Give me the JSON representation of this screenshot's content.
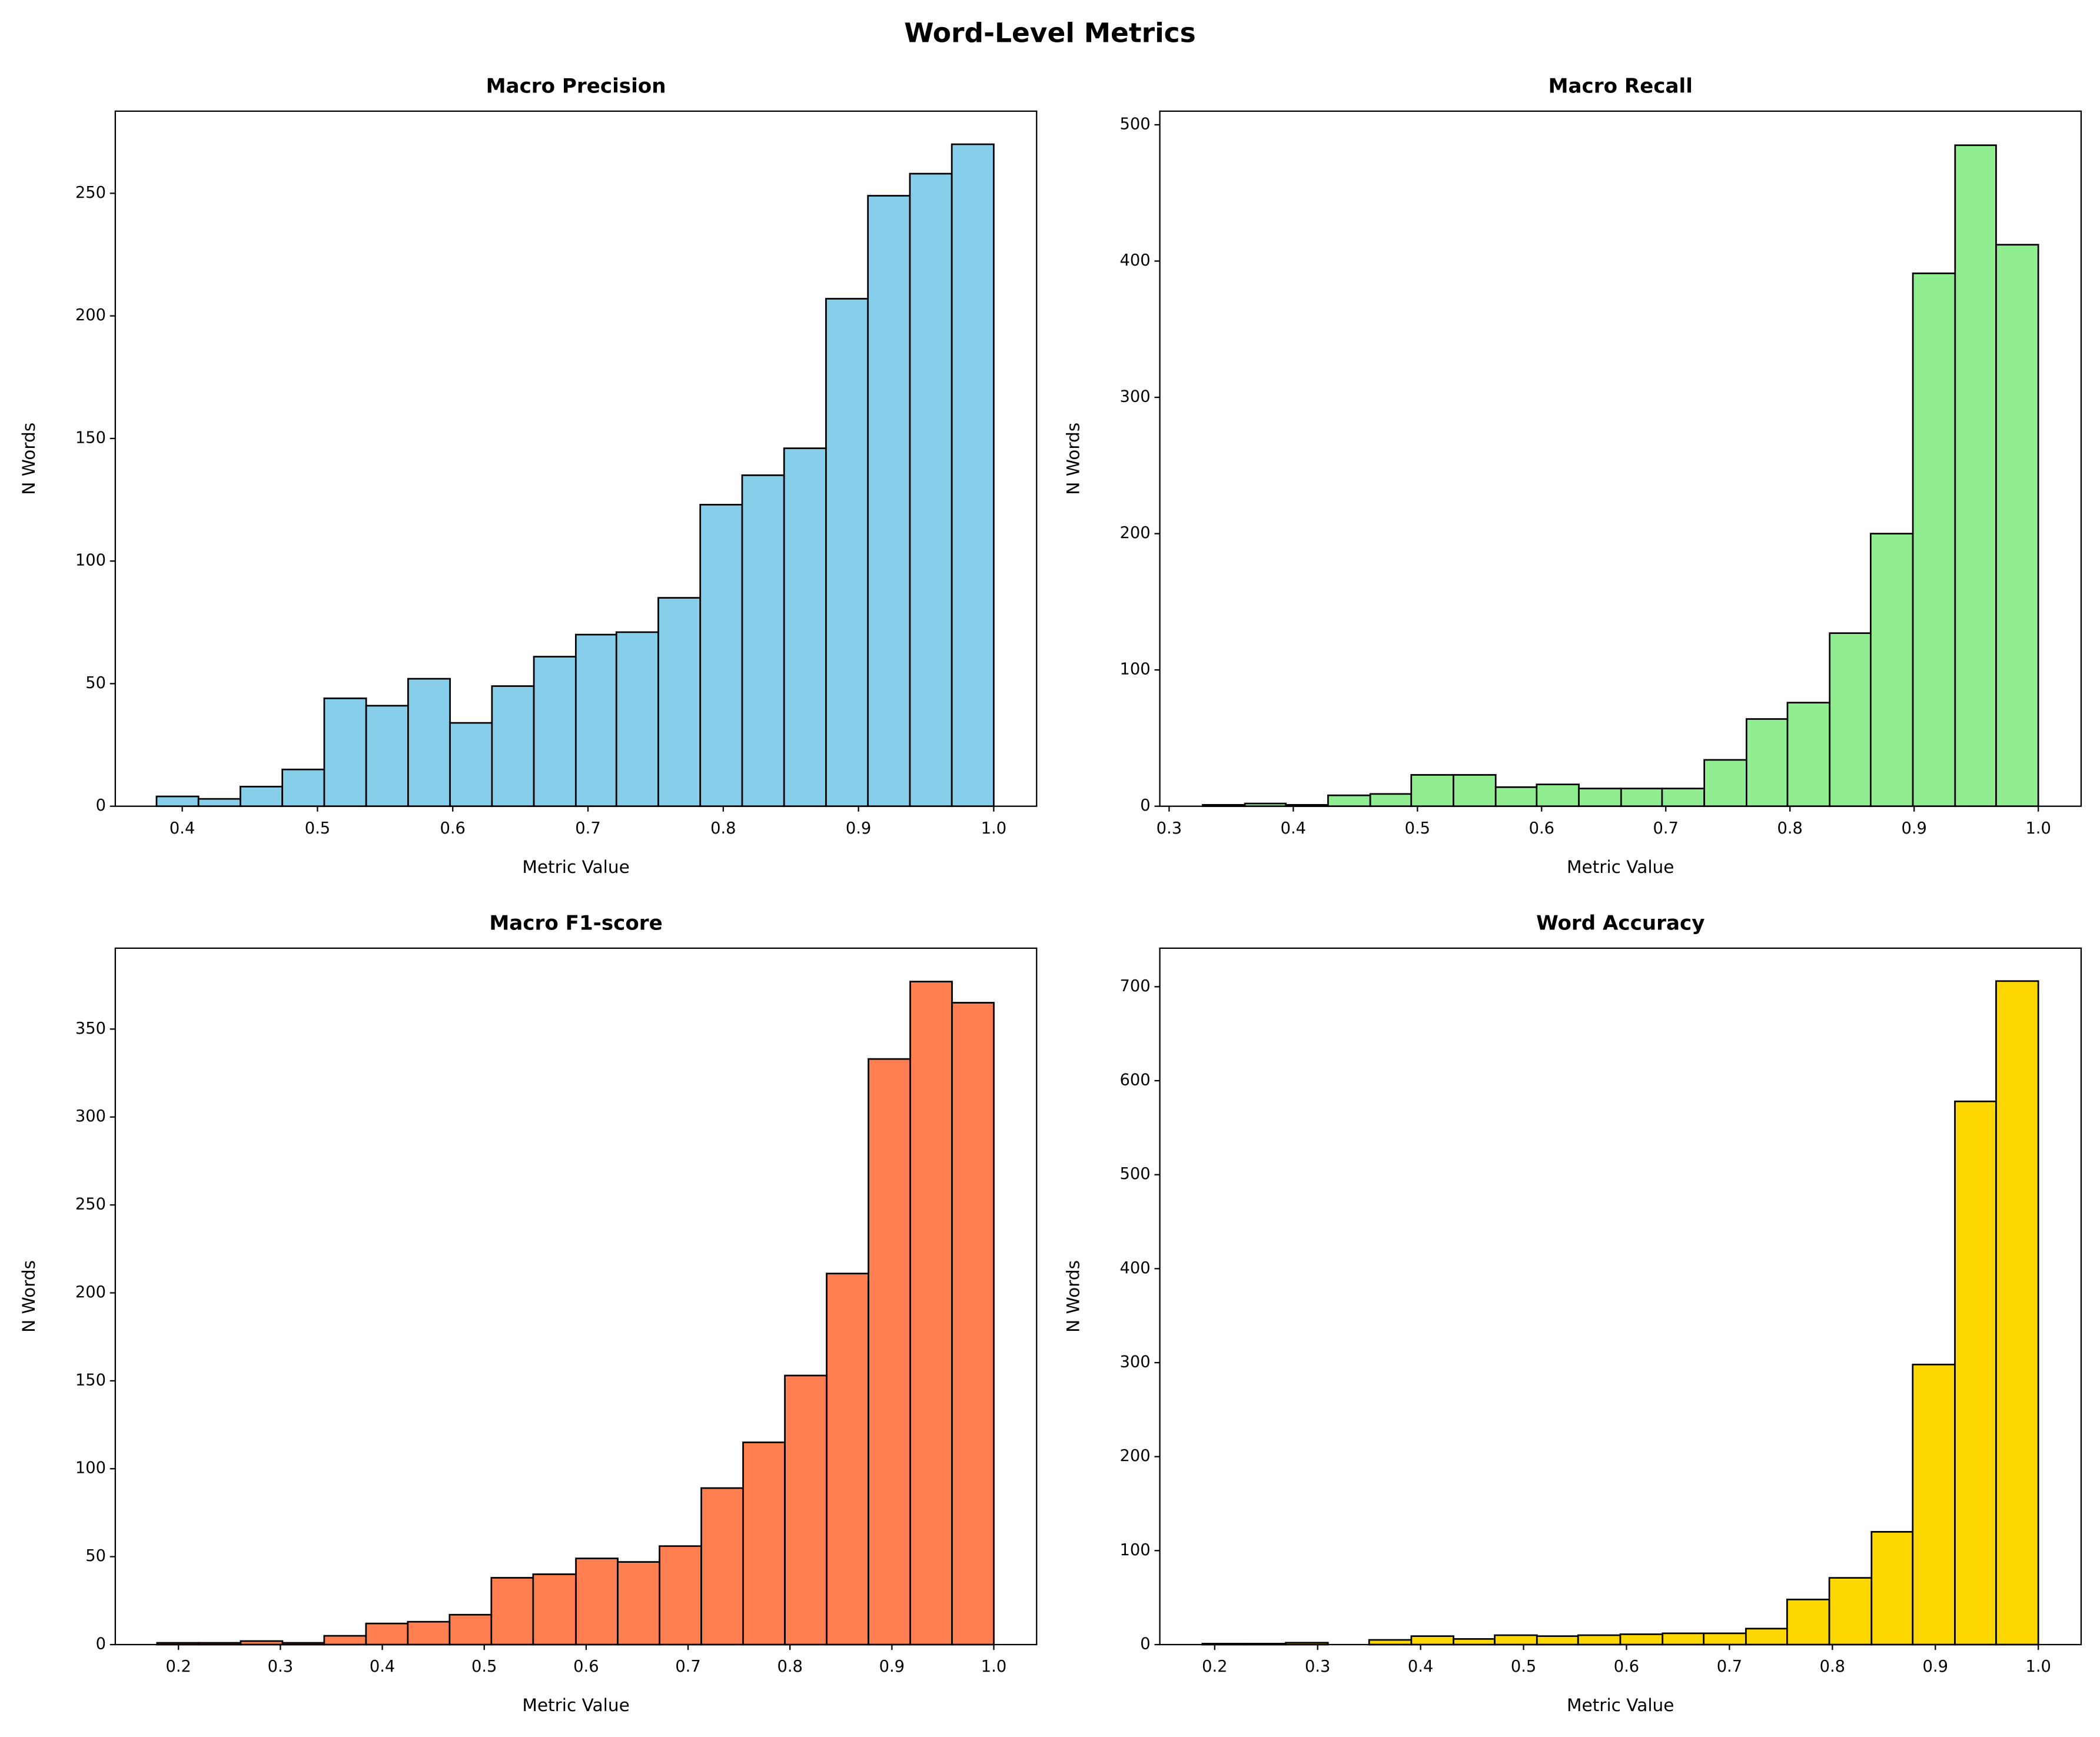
{
  "title": "Word-Level Metrics",
  "chart_data": [
    {
      "type": "histogram",
      "title": "Macro Precision",
      "xlabel": "Metric Value",
      "ylabel": "N Words",
      "color": "#87ceeb",
      "bins": [
        0.381,
        0.412,
        0.443,
        0.474,
        0.505,
        0.536,
        0.567,
        0.598,
        0.629,
        0.66,
        0.691,
        0.721,
        0.752,
        0.783,
        0.814,
        0.845,
        0.876,
        0.907,
        0.938,
        0.969,
        1.0
      ],
      "values": [
        4,
        3,
        8,
        15,
        44,
        41,
        52,
        34,
        49,
        61,
        70,
        71,
        85,
        123,
        135,
        146,
        207,
        249,
        258,
        270
      ],
      "xlim": [
        0.3505,
        1.0317
      ],
      "ylim": [
        0,
        283.5
      ],
      "xticks": [
        0.4,
        0.5,
        0.6,
        0.7,
        0.8,
        0.9,
        {
          "value": 1,
          "label": "1.0"
        }
      ],
      "yticks": [
        0,
        50,
        100,
        150,
        200,
        250
      ]
    },
    {
      "type": "histogram",
      "title": "Macro Recall",
      "xlabel": "Metric Value",
      "ylabel": "N Words",
      "color": "#90ee90",
      "bins": [
        0.327,
        0.361,
        0.394,
        0.428,
        0.462,
        0.495,
        0.529,
        0.563,
        0.596,
        0.63,
        0.664,
        0.697,
        0.731,
        0.765,
        0.798,
        0.832,
        0.865,
        0.899,
        0.933,
        0.966,
        1.0
      ],
      "values": [
        1,
        2,
        1,
        8,
        9,
        23,
        23,
        14,
        16,
        13,
        13,
        13,
        34,
        64,
        76,
        127,
        200,
        391,
        485,
        412
      ],
      "xlim": [
        0.2925,
        1.0345
      ],
      "ylim": [
        0,
        510
      ],
      "xticks": [
        0.3,
        0.4,
        0.5,
        0.6,
        0.7,
        0.8,
        0.9,
        {
          "value": 1,
          "label": "1.0"
        }
      ],
      "yticks": [
        0,
        100,
        200,
        300,
        400,
        500
      ]
    },
    {
      "type": "histogram",
      "title": "Macro F1-score",
      "xlabel": "Metric Value",
      "ylabel": "N Words",
      "color": "#ff7f50",
      "bins": [
        0.179,
        0.22,
        0.261,
        0.302,
        0.343,
        0.384,
        0.425,
        0.466,
        0.507,
        0.548,
        0.59,
        0.631,
        0.672,
        0.713,
        0.754,
        0.795,
        0.836,
        0.877,
        0.918,
        0.959,
        1.0
      ],
      "values": [
        1,
        1,
        2,
        1,
        5,
        12,
        13,
        17,
        38,
        40,
        49,
        47,
        56,
        89,
        115,
        153,
        211,
        333,
        377,
        365
      ],
      "xlim": [
        0.138,
        1.042
      ],
      "ylim": [
        0,
        396
      ],
      "xticks": [
        0.2,
        0.3,
        0.4,
        0.5,
        0.6,
        0.7,
        0.8,
        0.9,
        {
          "value": 1,
          "label": "1.0"
        }
      ],
      "yticks": [
        0,
        50,
        100,
        150,
        200,
        250,
        300,
        350
      ]
    },
    {
      "type": "histogram",
      "title": "Word Accuracy",
      "xlabel": "Metric Value",
      "ylabel": "N Words",
      "color": "#ffd700",
      "bins": [
        0.188,
        0.229,
        0.269,
        0.31,
        0.35,
        0.391,
        0.432,
        0.472,
        0.513,
        0.553,
        0.594,
        0.635,
        0.675,
        0.716,
        0.756,
        0.797,
        0.838,
        0.878,
        0.919,
        0.959,
        1.0
      ],
      "values": [
        1,
        1,
        2,
        0,
        5,
        9,
        6,
        10,
        9,
        10,
        11,
        12,
        12,
        17,
        48,
        71,
        120,
        298,
        578,
        706
      ],
      "xlim": [
        0.1467,
        1.0416
      ],
      "ylim": [
        0,
        741
      ],
      "xticks": [
        0.2,
        0.3,
        0.4,
        0.5,
        0.6,
        0.7,
        0.8,
        0.9,
        {
          "value": 1,
          "label": "1.0"
        }
      ],
      "yticks": [
        0,
        100,
        200,
        300,
        400,
        500,
        600,
        700
      ]
    }
  ]
}
